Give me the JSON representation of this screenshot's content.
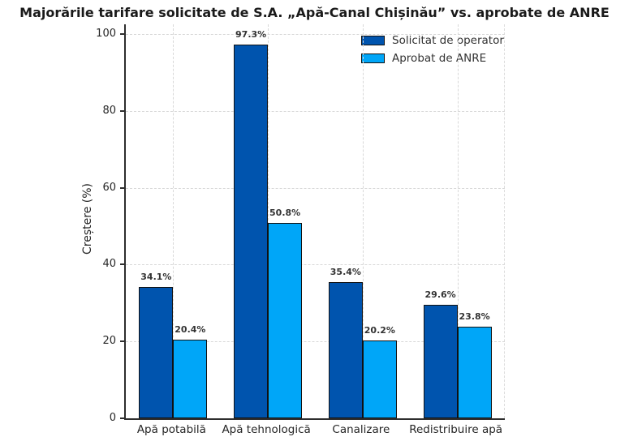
{
  "chart_data": {
    "type": "bar",
    "title": "Majorările tarifare solicitate de S.A. „Apă-Canal Chișinău” vs. aprobate de ANRE",
    "ylabel": "Creștere (%)",
    "xlabel": "",
    "categories": [
      "Apă potabilă",
      "Apă tehnologică",
      "Canalizare",
      "Redistribuire apă"
    ],
    "series": [
      {
        "name": "Solicitat de operator",
        "color": "#0054ae",
        "values": [
          34.1,
          97.3,
          35.4,
          29.6
        ]
      },
      {
        "name": "Aprobat de ANRE",
        "color": "#00a6f8",
        "values": [
          20.4,
          50.8,
          20.2,
          23.8
        ]
      }
    ],
    "value_labels": [
      [
        "34.1%",
        "97.3%",
        "35.4%",
        "29.6%"
      ],
      [
        "20.4%",
        "50.8%",
        "20.2%",
        "23.8%"
      ]
    ],
    "ylim": [
      0,
      102.5
    ],
    "yticks": [
      "0",
      "20",
      "40",
      "60",
      "80",
      "100"
    ],
    "grid": "dashed-horizontal-and-vertical",
    "legend_position": "upper-center-inside",
    "bar_edge_color": "#111111",
    "grid_color": "#d8d8d8"
  }
}
